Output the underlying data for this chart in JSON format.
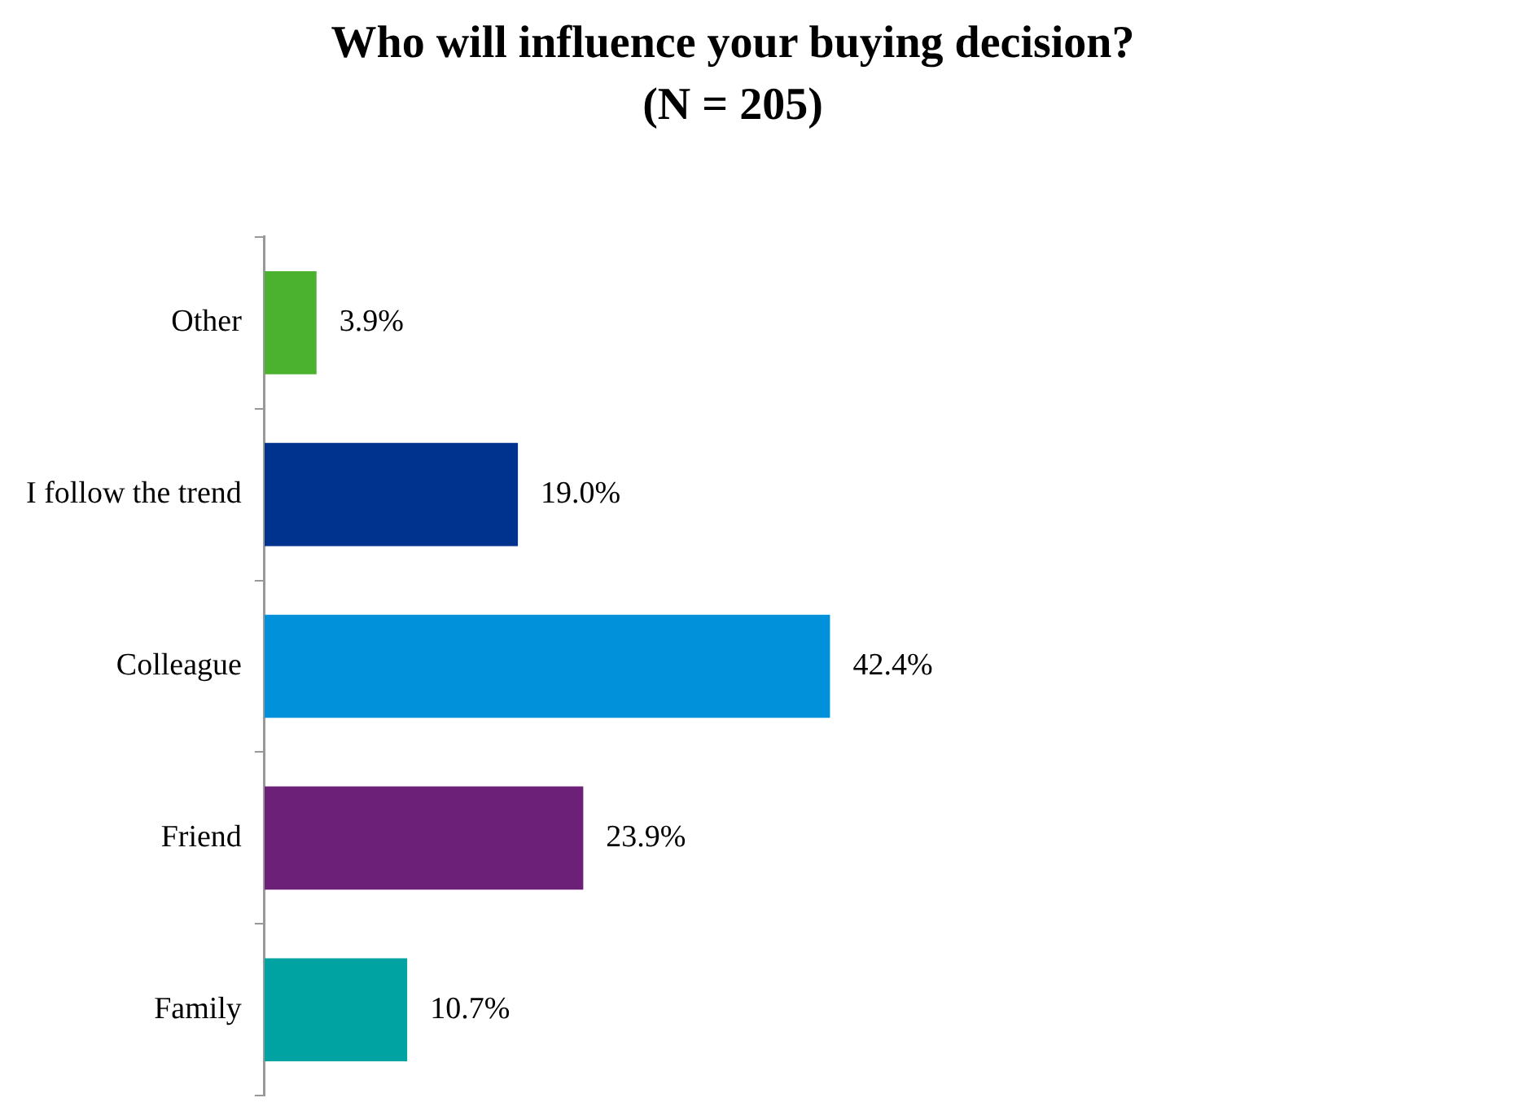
{
  "chart_data": {
    "type": "bar",
    "orientation": "horizontal",
    "title": "Who will influence your buying decision? (N = 205)",
    "categories": [
      "Other",
      "I follow the trend",
      "Colleague",
      "Friend",
      "Family"
    ],
    "values": [
      3.9,
      19.0,
      42.4,
      23.9,
      10.7
    ],
    "colors": [
      "#4ab22e",
      "#00338d",
      "#0091da",
      "#6d2077",
      "#00a3a1"
    ],
    "value_labels": [
      "3.9%",
      "19.0%",
      "42.4%",
      "23.9%",
      "10.7%"
    ],
    "tick_labels": "y",
    "legend": false
  }
}
